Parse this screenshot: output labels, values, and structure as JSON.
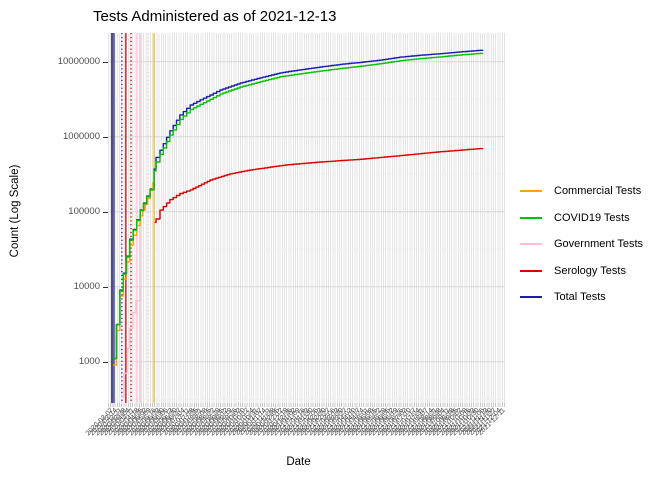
{
  "title": "Tests Administered as of 2021-12-13",
  "axes": {
    "y": {
      "title": "Count (Log Scale)",
      "tick_labels": [
        "10000000",
        "1000000",
        "100000",
        "10000",
        "1000"
      ],
      "tick_values": [
        10000000,
        1000000,
        100000,
        10000,
        1000
      ]
    },
    "x": {
      "title": "Date",
      "tick_label_start": "2020-03-07",
      "tick_label_interval_days": 7,
      "tick_label_count": 93
    }
  },
  "legend": {
    "items": [
      {
        "label": "Commercial Tests",
        "color": "#ffa500"
      },
      {
        "label": "COVID19 Tests",
        "color": "#00c400"
      },
      {
        "label": "Government Tests",
        "color": "#ffbfd0"
      },
      {
        "label": "Serology Tests",
        "color": "#dd0000"
      },
      {
        "label": "Total Tests",
        "color": "#1c1cae"
      }
    ]
  },
  "chart_data": {
    "type": "line",
    "title": "Tests Administered as of 2021-12-13",
    "xlabel": "Date",
    "ylabel": "Count (Log Scale)",
    "y_scale": "log10",
    "ylim": [
      300,
      21000000
    ],
    "x_range": [
      "2020-03-07",
      "2021-12-13"
    ],
    "grid": "dense-vertical-date-breaks",
    "legend_position": "right",
    "series": [
      {
        "name": "Total Tests",
        "color": "#1c1cae",
        "points": [
          [
            0.013,
            1100
          ],
          [
            0.03,
            9000
          ],
          [
            0.055,
            43000
          ],
          [
            0.081,
            105000
          ],
          [
            0.106,
            200000
          ],
          [
            0.116,
            370000
          ],
          [
            0.121,
            530000
          ],
          [
            0.131,
            660000
          ],
          [
            0.156,
            1200000
          ],
          [
            0.181,
            1950000
          ],
          [
            0.207,
            2650000
          ],
          [
            0.232,
            3100000
          ],
          [
            0.257,
            3600000
          ],
          [
            0.282,
            4200000
          ],
          [
            0.333,
            5200000
          ],
          [
            0.383,
            6100000
          ],
          [
            0.433,
            7100000
          ],
          [
            0.484,
            7800000
          ],
          [
            0.534,
            8500000
          ],
          [
            0.584,
            9200000
          ],
          [
            0.635,
            9800000
          ],
          [
            0.685,
            10500000
          ],
          [
            0.735,
            11500000
          ],
          [
            0.786,
            12200000
          ],
          [
            0.836,
            12800000
          ],
          [
            0.886,
            13500000
          ],
          [
            0.944,
            14300000
          ]
        ]
      },
      {
        "name": "Government Tests",
        "color": "#ffbfd0",
        "points": [
          [
            0.033,
            340
          ],
          [
            0.04,
            700
          ],
          [
            0.048,
            1500
          ],
          [
            0.055,
            2800
          ],
          [
            0.063,
            4500
          ],
          [
            0.071,
            6500
          ],
          [
            0.081,
            9500
          ]
        ]
      },
      {
        "name": "Commercial Tests",
        "color": "#ffa500",
        "points": [
          [
            0.013,
            900
          ],
          [
            0.03,
            7500
          ],
          [
            0.055,
            36000
          ],
          [
            0.081,
            88000
          ],
          [
            0.1,
            150000
          ],
          [
            0.113,
            250000
          ]
        ]
      },
      {
        "name": "Serology Tests",
        "color": "#dd0000",
        "points": [
          [
            0.118,
            72000
          ],
          [
            0.121,
            80000
          ],
          [
            0.131,
            105000
          ],
          [
            0.156,
            145000
          ],
          [
            0.181,
            175000
          ],
          [
            0.207,
            195000
          ],
          [
            0.257,
            265000
          ],
          [
            0.307,
            320000
          ],
          [
            0.358,
            360000
          ],
          [
            0.446,
            420000
          ],
          [
            0.534,
            460000
          ],
          [
            0.635,
            500000
          ],
          [
            0.735,
            560000
          ],
          [
            0.836,
            630000
          ],
          [
            0.944,
            700000
          ]
        ]
      },
      {
        "name": "COVID19 Tests",
        "color": "#00c400",
        "points": [
          [
            0.013,
            1100
          ],
          [
            0.03,
            8800
          ],
          [
            0.055,
            42000
          ],
          [
            0.081,
            103000
          ],
          [
            0.106,
            196000
          ],
          [
            0.116,
            350000
          ],
          [
            0.121,
            460000
          ],
          [
            0.131,
            580000
          ],
          [
            0.156,
            1050000
          ],
          [
            0.181,
            1700000
          ],
          [
            0.207,
            2300000
          ],
          [
            0.232,
            2700000
          ],
          [
            0.257,
            3150000
          ],
          [
            0.282,
            3700000
          ],
          [
            0.333,
            4600000
          ],
          [
            0.383,
            5400000
          ],
          [
            0.433,
            6300000
          ],
          [
            0.484,
            6900000
          ],
          [
            0.534,
            7500000
          ],
          [
            0.584,
            8100000
          ],
          [
            0.635,
            8700000
          ],
          [
            0.685,
            9400000
          ],
          [
            0.735,
            10300000
          ],
          [
            0.786,
            11000000
          ],
          [
            0.836,
            11600000
          ],
          [
            0.886,
            12300000
          ],
          [
            0.944,
            13000000
          ]
        ]
      }
    ],
    "vlines": [
      {
        "color": "#000000",
        "style": "solid",
        "t": 0.01
      },
      {
        "color": "#2424cc",
        "style": "solid",
        "t": 0.015
      },
      {
        "color": "#2424cc",
        "style": "dotted",
        "t": 0.035
      },
      {
        "color": "#cc0000",
        "style": "solid",
        "t": 0.045
      },
      {
        "color": "#cc0000",
        "style": "dotted",
        "t": 0.058
      },
      {
        "color": "#ffbfd0",
        "style": "solid",
        "t": 0.073
      },
      {
        "color": "#ffbfd0",
        "style": "solid",
        "t": 0.081
      },
      {
        "color": "#ffbfd0",
        "style": "dotted",
        "t": 0.101
      },
      {
        "color": "#e8c11c",
        "style": "solid",
        "t": 0.116
      }
    ]
  }
}
